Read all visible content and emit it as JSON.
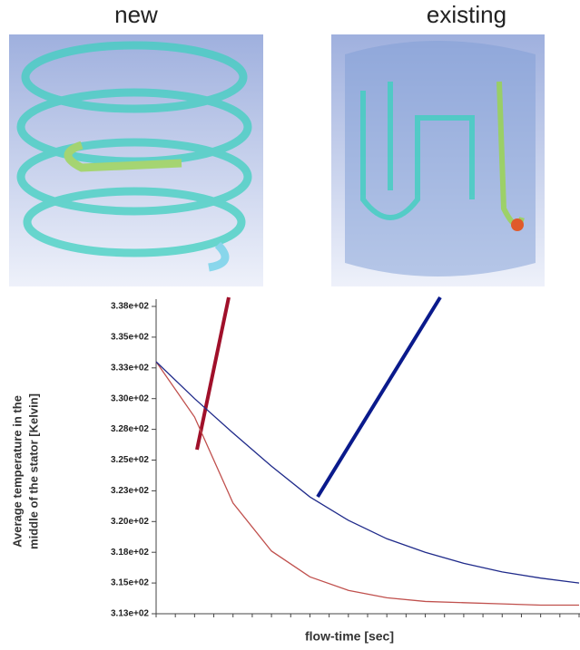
{
  "panels": [
    {
      "label": "new"
    },
    {
      "label": "existing"
    }
  ],
  "chart_data": {
    "type": "line",
    "xlabel": "flow-time [sec]",
    "ylabel": [
      "Average temperature in the",
      "middle of the stator [Kelvin]"
    ],
    "ylim": [
      312.5,
      337.5
    ],
    "yticks": [
      {
        "value": 312.5,
        "label": "3.13e+02"
      },
      {
        "value": 315,
        "label": "3.15e+02"
      },
      {
        "value": 317.5,
        "label": "3.18e+02"
      },
      {
        "value": 320,
        "label": "3.20e+02"
      },
      {
        "value": 322.5,
        "label": "3.23e+02"
      },
      {
        "value": 325,
        "label": "3.25e+02"
      },
      {
        "value": 327.5,
        "label": "3.28e+02"
      },
      {
        "value": 330,
        "label": "3.30e+02"
      },
      {
        "value": 332.5,
        "label": "3.33e+02"
      },
      {
        "value": 335,
        "label": "3.35e+02"
      },
      {
        "value": 337.5,
        "label": "3.38e+02"
      }
    ],
    "series": [
      {
        "color": "#c0504d",
        "values": [
          333,
          328.5,
          321.5,
          317.6,
          315.5,
          314.4,
          313.8,
          313.5,
          313.4,
          313.3,
          313.2,
          313.2
        ]
      },
      {
        "color": "#1f2a8a",
        "values": [
          333,
          330.0,
          327.2,
          324.5,
          322.0,
          320.1,
          318.6,
          317.5,
          316.6,
          315.9,
          315.4,
          315.0
        ]
      }
    ]
  }
}
